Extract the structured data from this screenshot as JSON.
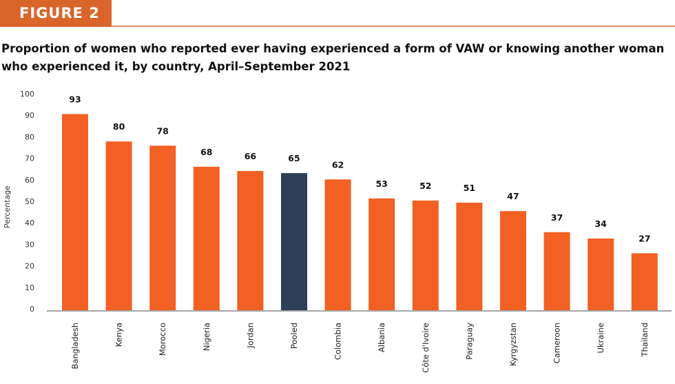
{
  "figure_label": "FIGURE 2",
  "chart_data": {
    "type": "bar",
    "title": "Proportion of women who reported ever having experienced a form of VAW or knowing another woman who experienced it, by country, April–September 2021",
    "xlabel": "",
    "ylabel": "Percentage",
    "ylim": [
      0,
      100
    ],
    "yticks": [
      0,
      10,
      20,
      30,
      40,
      50,
      60,
      70,
      80,
      90,
      100
    ],
    "grid": false,
    "categories": [
      "Bangladesh",
      "Kenya",
      "Morocco",
      "Nigeria",
      "Jordan",
      "Pooled",
      "Colombia",
      "Albania",
      "Côte d'Ivoire",
      "Paraguay",
      "Kyrgyzstan",
      "Cameroon",
      "Ukraine",
      "Thailand"
    ],
    "values": [
      93,
      80,
      78,
      68,
      66,
      65,
      62,
      53,
      52,
      51,
      47,
      37,
      34,
      27
    ],
    "colors": {
      "country": "#f26024",
      "pooled": "#2b3f56"
    },
    "highlight_category": "Pooled"
  }
}
